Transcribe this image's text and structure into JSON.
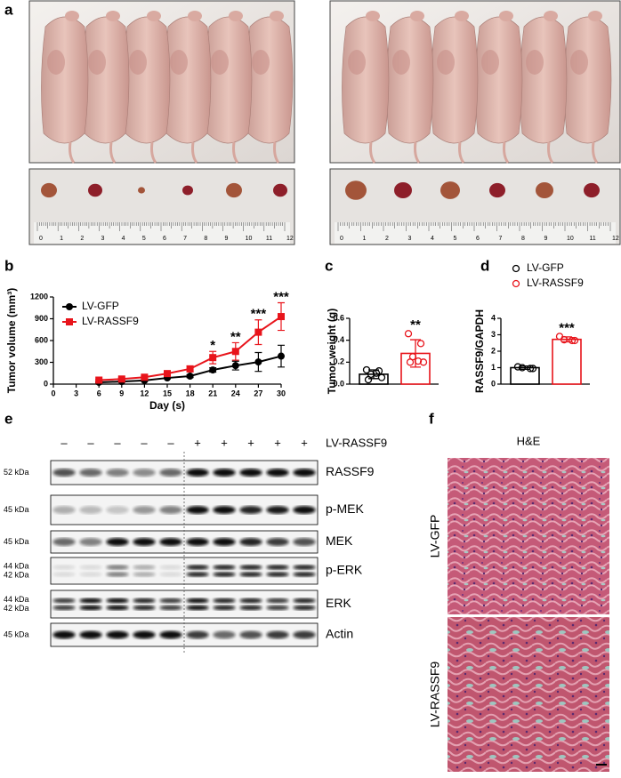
{
  "panel_labels": [
    "a",
    "b",
    "c",
    "d",
    "e",
    "f"
  ],
  "photos": {
    "ruler_labels": [
      0,
      1,
      2,
      3,
      4,
      5,
      6,
      7,
      8,
      9,
      10,
      11,
      12
    ]
  },
  "chart_data": [
    {
      "type": "line",
      "panel": "b",
      "x": [
        6,
        9,
        12,
        15,
        18,
        21,
        24,
        27,
        30
      ],
      "xlim": [
        0,
        30
      ],
      "xticks": [
        0,
        3,
        6,
        9,
        12,
        15,
        18,
        21,
        24,
        27,
        30
      ],
      "ylim": [
        0,
        1200
      ],
      "yticks": [
        0,
        300,
        600,
        900,
        1200
      ],
      "x_label": "Day (s)",
      "y_label": "Tumor volume (mm³)",
      "series": [
        {
          "name": "LV-GFP",
          "color": "#000000",
          "marker": "circle",
          "values": [
            25,
            35,
            50,
            85,
            110,
            195,
            255,
            305,
            385
          ],
          "errors": [
            8,
            10,
            10,
            12,
            20,
            30,
            60,
            130,
            150
          ]
        },
        {
          "name": "LV-RASSF9",
          "color": "#e8141b",
          "marker": "square",
          "values": [
            55,
            70,
            95,
            145,
            210,
            365,
            450,
            715,
            930
          ],
          "errors": [
            10,
            15,
            20,
            25,
            40,
            85,
            120,
            170,
            190
          ]
        }
      ],
      "annotations": [
        {
          "x": 21,
          "label": "*"
        },
        {
          "x": 24,
          "label": "**"
        },
        {
          "x": 27,
          "label": "***"
        },
        {
          "x": 30,
          "label": "***"
        }
      ]
    },
    {
      "type": "bar",
      "panel": "c",
      "values": [
        0.09,
        0.28
      ],
      "errors": [
        0.04,
        0.125
      ],
      "colors": [
        "#000000",
        "#e8141b"
      ],
      "points": [
        [
          0.13,
          0.12,
          0.09,
          0.06,
          0.04,
          0.1
        ],
        [
          0.46,
          0.37,
          0.25,
          0.2,
          0.2,
          0.21
        ]
      ],
      "ylim": [
        0,
        0.6
      ],
      "yticks": [
        {
          "value": 0,
          "label": "0.0"
        },
        0.2,
        0.4,
        0.6
      ],
      "y_label": "Tumor weight (g)",
      "significance": [
        null,
        "**"
      ]
    },
    {
      "type": "bar",
      "panel": "d",
      "values": [
        1,
        2.72
      ],
      "errors": [
        0.1,
        0.15
      ],
      "colors": [
        "#000000",
        "#e8141b"
      ],
      "legend": [
        "LV-GFP",
        "LV-RASSF9"
      ],
      "points": [
        [
          1.05,
          0.95,
          1.0,
          0.95
        ],
        [
          2.9,
          2.65,
          2.7,
          2.65
        ]
      ],
      "ylim": [
        0,
        4
      ],
      "yticks": [
        0,
        1,
        2,
        3,
        4
      ],
      "y_label": "RASSF9/GAPDH",
      "significance": [
        null,
        "***"
      ]
    }
  ],
  "western_blot": {
    "lane_signs": [
      "–",
      "–",
      "–",
      "–",
      "–",
      "+",
      "+",
      "+",
      "+",
      "+"
    ],
    "treatment": "LV-RASSF9",
    "rows": [
      {
        "kda": [
          "52 kDa"
        ],
        "protein": "RASSF9"
      },
      {
        "kda": [
          "45 kDa"
        ],
        "protein": "p-MEK"
      },
      {
        "kda": [
          "45 kDa"
        ],
        "protein": "MEK"
      },
      {
        "kda": [
          "44 kDa",
          "42 kDa"
        ],
        "protein": "p-ERK"
      },
      {
        "kda": [
          "44 kDa",
          "42 kDa"
        ],
        "protein": "ERK"
      },
      {
        "kda": [
          "45 kDa"
        ],
        "protein": "Actin"
      }
    ]
  },
  "histology": {
    "title": "H&E",
    "groups": [
      "LV-GFP",
      "LV-RASSF9"
    ]
  }
}
